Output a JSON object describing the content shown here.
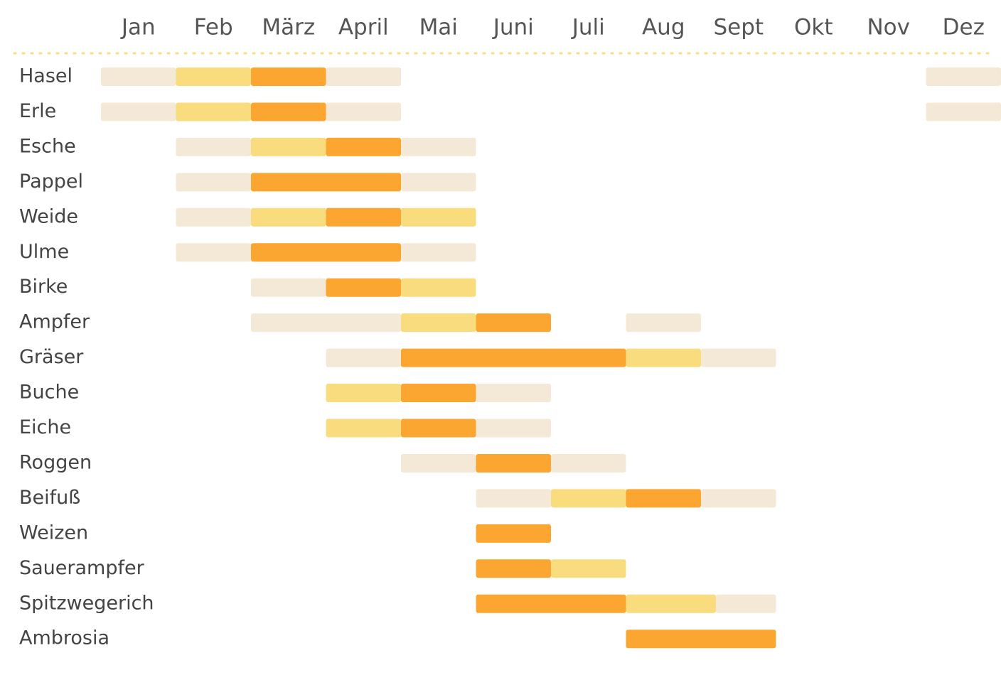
{
  "chart_data": {
    "type": "gantt",
    "categories": [
      "Jan",
      "Feb",
      "März",
      "April",
      "Mai",
      "Juni",
      "Juli",
      "Aug",
      "Sept",
      "Okt",
      "Nov",
      "Dez"
    ],
    "xlim": [
      0,
      12
    ],
    "rows": [
      {
        "name": "Hasel",
        "segments": [
          {
            "start": 0,
            "end": 1,
            "color": "#f4e9d6"
          },
          {
            "start": 1,
            "end": 2,
            "color": "#f9dc7e"
          },
          {
            "start": 2,
            "end": 3,
            "color": "#fba630"
          },
          {
            "start": 3,
            "end": 4,
            "color": "#f4e9d6"
          },
          {
            "start": 11,
            "end": 12,
            "color": "#f4e9d6"
          }
        ]
      },
      {
        "name": "Erle",
        "segments": [
          {
            "start": 0,
            "end": 1,
            "color": "#f4e9d6"
          },
          {
            "start": 1,
            "end": 2,
            "color": "#f9dc7e"
          },
          {
            "start": 2,
            "end": 3,
            "color": "#fba630"
          },
          {
            "start": 3,
            "end": 4,
            "color": "#f4e9d6"
          },
          {
            "start": 11,
            "end": 12,
            "color": "#f4e9d6"
          }
        ]
      },
      {
        "name": "Esche",
        "segments": [
          {
            "start": 1,
            "end": 2,
            "color": "#f4e9d6"
          },
          {
            "start": 2,
            "end": 3,
            "color": "#f9dc7e"
          },
          {
            "start": 3,
            "end": 4,
            "color": "#fba630"
          },
          {
            "start": 4,
            "end": 5,
            "color": "#f4e9d6"
          }
        ]
      },
      {
        "name": "Pappel",
        "segments": [
          {
            "start": 1,
            "end": 2,
            "color": "#f4e9d6"
          },
          {
            "start": 2,
            "end": 4,
            "color": "#fba630"
          },
          {
            "start": 4,
            "end": 5,
            "color": "#f4e9d6"
          }
        ]
      },
      {
        "name": "Weide",
        "segments": [
          {
            "start": 1,
            "end": 2,
            "color": "#f4e9d6"
          },
          {
            "start": 2,
            "end": 3,
            "color": "#f9dc7e"
          },
          {
            "start": 3,
            "end": 4,
            "color": "#fba630"
          },
          {
            "start": 4,
            "end": 5,
            "color": "#f9dc7e"
          }
        ]
      },
      {
        "name": "Ulme",
        "segments": [
          {
            "start": 1,
            "end": 2,
            "color": "#f4e9d6"
          },
          {
            "start": 2,
            "end": 4,
            "color": "#fba630"
          },
          {
            "start": 4,
            "end": 5,
            "color": "#f4e9d6"
          }
        ]
      },
      {
        "name": "Birke",
        "segments": [
          {
            "start": 2,
            "end": 3,
            "color": "#f4e9d6"
          },
          {
            "start": 3,
            "end": 4,
            "color": "#fba630"
          },
          {
            "start": 4,
            "end": 5,
            "color": "#f9dc7e"
          }
        ]
      },
      {
        "name": "Ampfer",
        "segments": [
          {
            "start": 2,
            "end": 4,
            "color": "#f4e9d6"
          },
          {
            "start": 4,
            "end": 5,
            "color": "#f9dc7e"
          },
          {
            "start": 5,
            "end": 6,
            "color": "#fba630"
          },
          {
            "start": 7,
            "end": 8,
            "color": "#f4e9d6"
          }
        ]
      },
      {
        "name": "Gräser",
        "segments": [
          {
            "start": 3,
            "end": 4,
            "color": "#f4e9d6"
          },
          {
            "start": 4,
            "end": 7,
            "color": "#fba630"
          },
          {
            "start": 7,
            "end": 8,
            "color": "#f9dc7e"
          },
          {
            "start": 8,
            "end": 9,
            "color": "#f4e9d6"
          }
        ]
      },
      {
        "name": "Buche",
        "segments": [
          {
            "start": 3,
            "end": 4,
            "color": "#f9dc7e"
          },
          {
            "start": 4,
            "end": 5,
            "color": "#fba630"
          },
          {
            "start": 5,
            "end": 6,
            "color": "#f4e9d6"
          }
        ]
      },
      {
        "name": "Eiche",
        "segments": [
          {
            "start": 3,
            "end": 4,
            "color": "#f9dc7e"
          },
          {
            "start": 4,
            "end": 5,
            "color": "#fba630"
          },
          {
            "start": 5,
            "end": 6,
            "color": "#f4e9d6"
          }
        ]
      },
      {
        "name": "Roggen",
        "segments": [
          {
            "start": 4,
            "end": 5,
            "color": "#f4e9d6"
          },
          {
            "start": 5,
            "end": 6,
            "color": "#fba630"
          },
          {
            "start": 6,
            "end": 7,
            "color": "#f4e9d6"
          }
        ]
      },
      {
        "name": "Beifuß",
        "segments": [
          {
            "start": 5,
            "end": 6,
            "color": "#f4e9d6"
          },
          {
            "start": 6,
            "end": 7,
            "color": "#f9dc7e"
          },
          {
            "start": 7,
            "end": 8,
            "color": "#fba630"
          },
          {
            "start": 8,
            "end": 9,
            "color": "#f4e9d6"
          }
        ]
      },
      {
        "name": "Weizen",
        "segments": [
          {
            "start": 5,
            "end": 6,
            "color": "#fba630"
          }
        ]
      },
      {
        "name": "Sauerampfer",
        "segments": [
          {
            "start": 5,
            "end": 6,
            "color": "#fba630"
          },
          {
            "start": 6,
            "end": 7,
            "color": "#f9dc7e"
          }
        ]
      },
      {
        "name": "Spitzwegerich",
        "segments": [
          {
            "start": 5,
            "end": 7,
            "color": "#fba630"
          },
          {
            "start": 7,
            "end": 8.2,
            "color": "#f9dc7e"
          },
          {
            "start": 8.2,
            "end": 9,
            "color": "#f4e9d6"
          }
        ]
      },
      {
        "name": "Ambrosia",
        "segments": [
          {
            "start": 7,
            "end": 9,
            "color": "#fba630"
          }
        ]
      }
    ]
  }
}
